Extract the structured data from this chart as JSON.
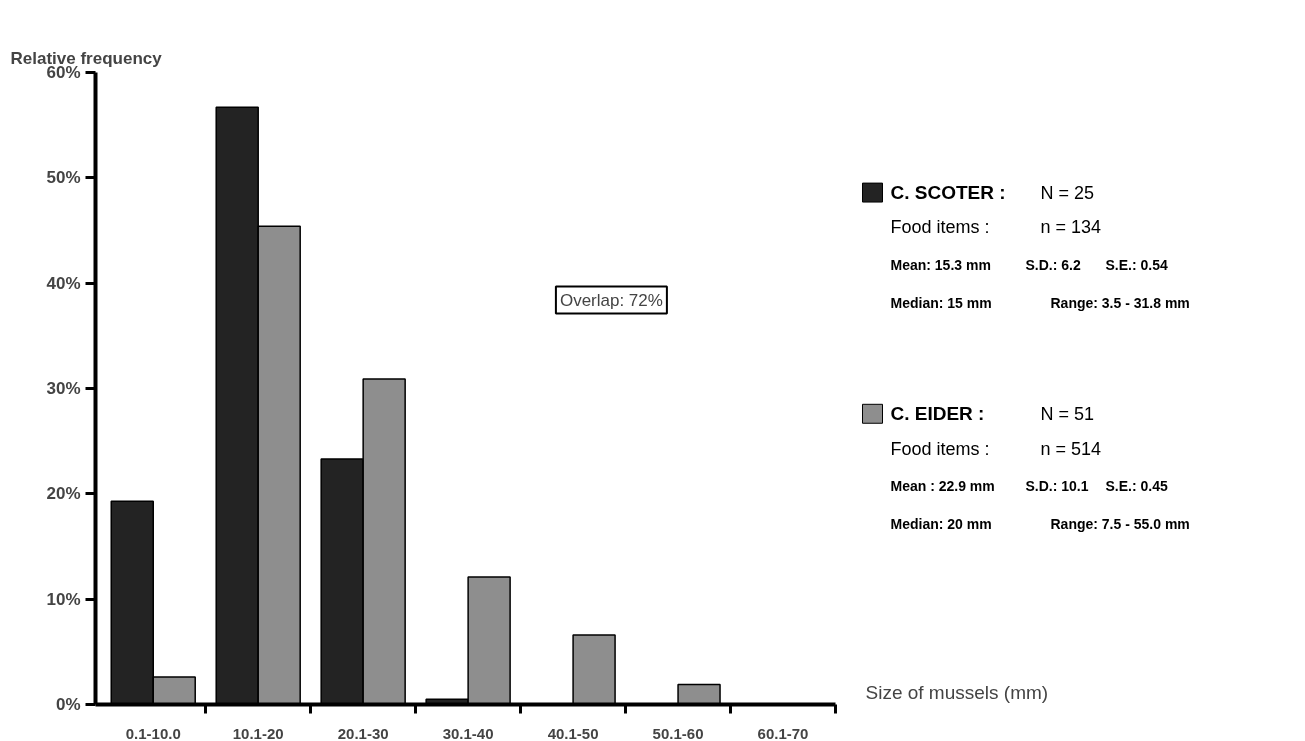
{
  "chart_data": {
    "type": "bar",
    "xlabel": "Size of mussels (mm)",
    "ylabel": "Relative frequency",
    "categories": [
      "0.1-10.0",
      "10.1-20",
      "20.1-30",
      "30.1-40",
      "40.1-50",
      "50.1-60",
      "60.1-70"
    ],
    "series": [
      {
        "name": "C. SCOTER :",
        "color": "#232323",
        "values": [
          19.3,
          56.7,
          23.3,
          0.5,
          null,
          null,
          null
        ]
      },
      {
        "name": "C. EIDER :",
        "color": "#8e8e8e",
        "values": [
          2.6,
          45.4,
          30.9,
          12.1,
          6.6,
          1.9,
          null
        ]
      }
    ],
    "ylim": [
      0,
      60
    ],
    "yticks": [
      {
        "value": 0,
        "label": "0%"
      },
      {
        "value": 10,
        "label": "10%"
      },
      {
        "value": 20,
        "label": "20%"
      },
      {
        "value": 30,
        "label": "30%"
      },
      {
        "value": 40,
        "label": "40%"
      },
      {
        "value": 50,
        "label": "50%"
      },
      {
        "value": 60,
        "label": "60%"
      }
    ],
    "grid": false,
    "legend": "right",
    "annotations": [
      "Overlap: 72%",
      "N = 25",
      "Food items :",
      "n = 134",
      "Mean: 15.3 mm",
      "S.D.: 6.2",
      "S.E.: 0.54",
      "Median: 15 mm",
      "Range: 3.5 - 31.8 mm",
      "N = 51",
      "Food items :",
      "n = 514",
      "Mean : 22.9 mm",
      "S.D.: 10.1",
      "S.E.: 0.45",
      "Median: 20 mm",
      "Range: 7.5 - 55.0 mm"
    ]
  }
}
